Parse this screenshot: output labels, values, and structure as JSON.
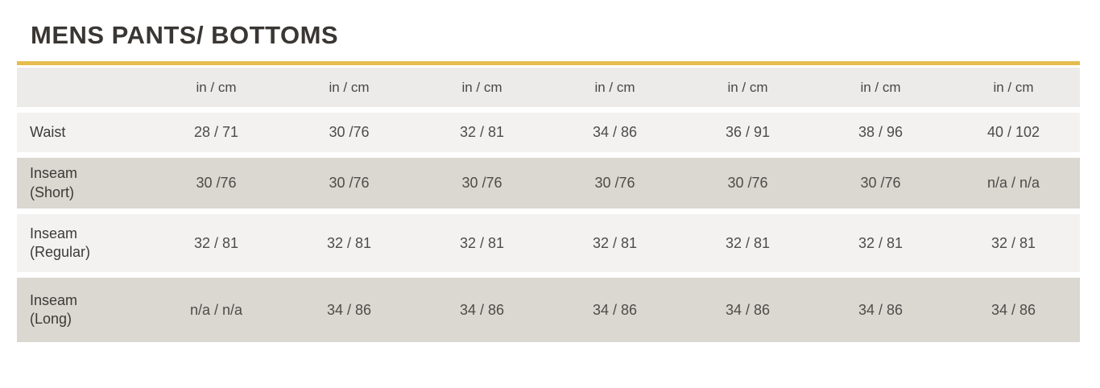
{
  "page": {
    "title": "MENS PANTS/ BOTTOMS"
  },
  "colors": {
    "accent_gold": "#e6bc4f",
    "header_band": "#ecebe9",
    "row_light": "#f3f2f0",
    "row_dark": "#dbd7d1",
    "title_text": "#393633",
    "cell_text": "#4e4c49"
  },
  "chart_data": {
    "type": "table",
    "title": "MENS PANTS/ BOTTOMS",
    "unit_headers": [
      "in / cm",
      "in / cm",
      "in / cm",
      "in / cm",
      "in / cm",
      "in / cm",
      "in / cm"
    ],
    "rows": [
      {
        "label": "Waist",
        "label_sub": "",
        "values": [
          "28 / 71",
          "30 /76",
          "32 / 81",
          "34 / 86",
          "36 / 91",
          "38 / 96",
          "40 / 102"
        ]
      },
      {
        "label": "Inseam",
        "label_sub": "(Short)",
        "values": [
          "30 /76",
          "30 /76",
          "30 /76",
          "30 /76",
          "30 /76",
          "30 /76",
          "n/a / n/a"
        ]
      },
      {
        "label": "Inseam",
        "label_sub": "(Regular)",
        "values": [
          "32 / 81",
          "32 / 81",
          "32 / 81",
          "32 / 81",
          "32 / 81",
          "32 / 81",
          "32 / 81"
        ]
      },
      {
        "label": "Inseam",
        "label_sub": "(Long)",
        "values": [
          "n/a / n/a",
          "34 / 86",
          "34 / 86",
          "34 / 86",
          "34 / 86",
          "34 / 86",
          "34 / 86"
        ]
      }
    ]
  }
}
